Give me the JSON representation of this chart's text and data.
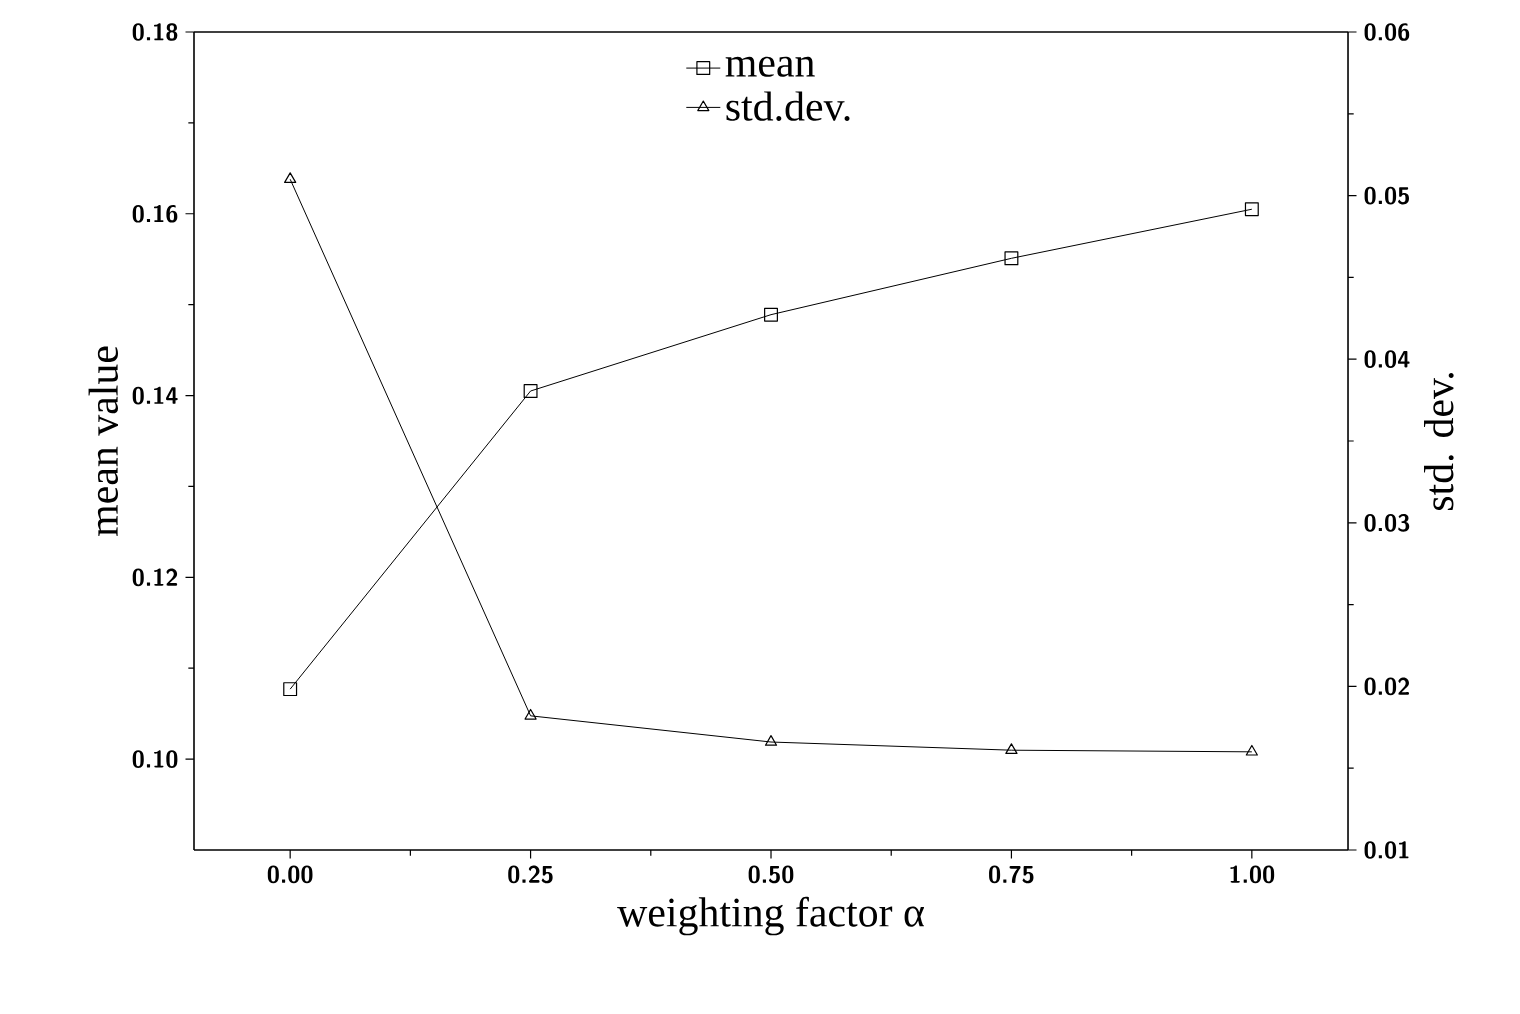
{
  "chart_data": {
    "type": "line",
    "xlabel": "weighting factor α",
    "ylabel": "mean value",
    "y2label": "std. dev.",
    "x": [
      0.0,
      0.25,
      0.5,
      0.75,
      1.0
    ],
    "series": [
      {
        "name": "mean",
        "color": "#000000",
        "marker": "square",
        "values": [
          0.1077,
          0.1405,
          0.1489,
          0.1551,
          0.1605
        ]
      },
      {
        "name": "std.dev.",
        "color": "#000000",
        "marker": "triangle",
        "axis": "y2",
        "values": [
          0.051,
          0.0182,
          0.0166,
          0.0161,
          0.016
        ]
      }
    ],
    "xlim": [
      -0.1,
      1.1
    ],
    "xticks": [
      {
        "value": 0,
        "label": "0.00"
      },
      {
        "value": 0.25,
        "label": "0.25"
      },
      {
        "value": 0.5,
        "label": "0.50"
      },
      {
        "value": 0.75,
        "label": "0.75"
      },
      {
        "value": 1,
        "label": "1.00"
      }
    ],
    "ylim": [
      0.09,
      0.18
    ],
    "yticks": [
      {
        "value": 0.1,
        "label": "0.10"
      },
      0.12,
      0.14,
      0.16,
      0.18
    ],
    "y2lim": [
      0.01,
      0.06
    ],
    "y2ticks": [
      0.01,
      0.02,
      0.03,
      0.04,
      0.05,
      0.06
    ],
    "legend": "top",
    "grid": false,
    "line_style": "solid"
  }
}
